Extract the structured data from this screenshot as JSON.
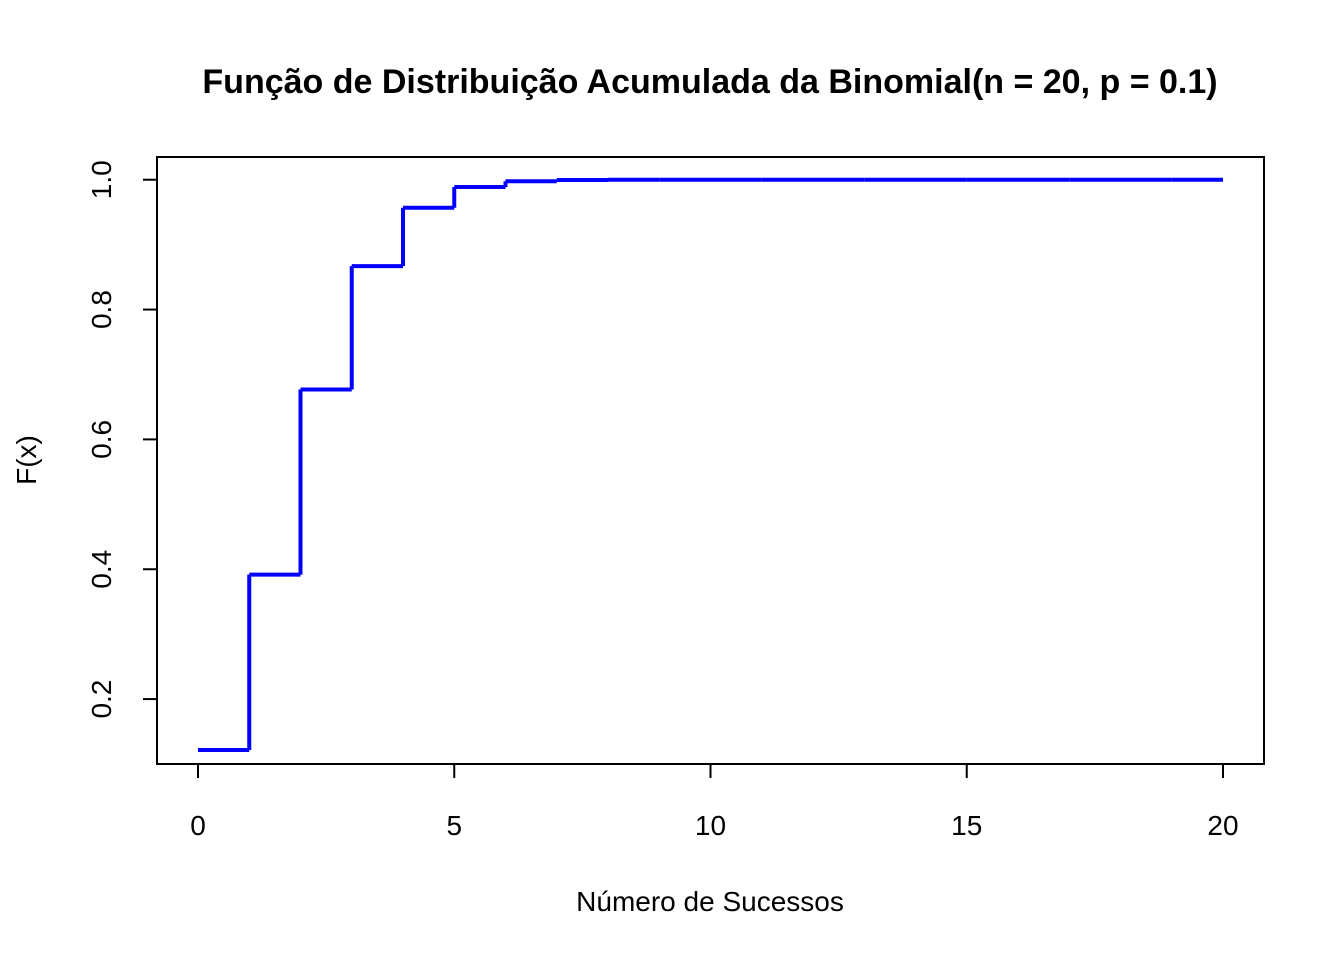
{
  "chart_data": {
    "type": "line",
    "subtype": "step",
    "title": "Função de Distribuição Acumulada da Binomial(n = 20, p = 0.1)",
    "xlabel": "Número de Sucessos",
    "ylabel": "F(x)",
    "xlim": [
      -0.8,
      20.8
    ],
    "ylim": [
      0.1,
      1.035
    ],
    "x_ticks": [
      0,
      5,
      10,
      15,
      20
    ],
    "x_tick_labels": [
      "0",
      "5",
      "10",
      "15",
      "20"
    ],
    "y_ticks": [
      0.2,
      0.4,
      0.6,
      0.8,
      1.0
    ],
    "y_tick_labels": [
      "0.2",
      "0.4",
      "0.6",
      "0.8",
      "1.0"
    ],
    "grid": false,
    "legend": "none",
    "line_color": "#0000ff",
    "series": [
      {
        "x": [
          0,
          1,
          2,
          3,
          4,
          5,
          6,
          7,
          8,
          9,
          10,
          11,
          12,
          13,
          14,
          15,
          16,
          17,
          18,
          19,
          20
        ],
        "values": [
          0.1216,
          0.3917,
          0.6769,
          0.867,
          0.9568,
          0.9887,
          0.9976,
          0.9996,
          0.9999,
          1.0,
          1.0,
          1.0,
          1.0,
          1.0,
          1.0,
          1.0,
          1.0,
          1.0,
          1.0,
          1.0,
          1.0
        ]
      }
    ]
  }
}
